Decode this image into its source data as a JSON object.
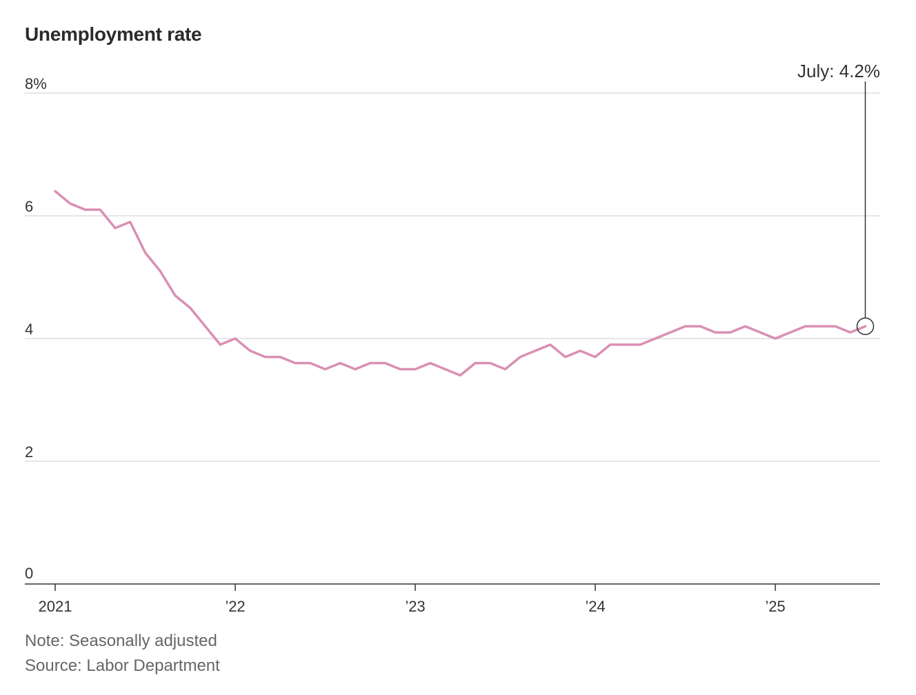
{
  "chart_data": {
    "type": "line",
    "title": "Unemployment rate",
    "series": [
      {
        "name": "Unemployment rate",
        "color": "#d98fb3",
        "x": [
          "2021-01",
          "2021-02",
          "2021-03",
          "2021-04",
          "2021-05",
          "2021-06",
          "2021-07",
          "2021-08",
          "2021-09",
          "2021-10",
          "2021-11",
          "2021-12",
          "2022-01",
          "2022-02",
          "2022-03",
          "2022-04",
          "2022-05",
          "2022-06",
          "2022-07",
          "2022-08",
          "2022-09",
          "2022-10",
          "2022-11",
          "2022-12",
          "2023-01",
          "2023-02",
          "2023-03",
          "2023-04",
          "2023-05",
          "2023-06",
          "2023-07",
          "2023-08",
          "2023-09",
          "2023-10",
          "2023-11",
          "2023-12",
          "2024-01",
          "2024-02",
          "2024-03",
          "2024-04",
          "2024-05",
          "2024-06",
          "2024-07",
          "2024-08",
          "2024-09",
          "2024-10",
          "2024-11",
          "2024-12",
          "2025-01",
          "2025-02",
          "2025-03",
          "2025-04",
          "2025-05",
          "2025-06",
          "2025-07"
        ],
        "values": [
          6.4,
          6.2,
          6.1,
          6.1,
          5.8,
          5.9,
          5.4,
          5.1,
          4.7,
          4.5,
          4.2,
          3.9,
          4.0,
          3.8,
          3.7,
          3.7,
          3.6,
          3.6,
          3.5,
          3.6,
          3.5,
          3.6,
          3.6,
          3.5,
          3.5,
          3.6,
          3.5,
          3.4,
          3.6,
          3.6,
          3.5,
          3.7,
          3.8,
          3.9,
          3.7,
          3.8,
          3.7,
          3.9,
          3.9,
          3.9,
          4.0,
          4.1,
          4.2,
          4.2,
          4.1,
          4.1,
          4.2,
          4.1,
          4.0,
          4.1,
          4.2,
          4.2,
          4.2,
          4.1,
          4.2
        ]
      }
    ],
    "y_ticks": [
      {
        "value": 8,
        "label": "8%"
      },
      {
        "value": 6,
        "label": "6"
      },
      {
        "value": 4,
        "label": "4"
      },
      {
        "value": 2,
        "label": "2"
      },
      {
        "value": 0,
        "label": "0"
      }
    ],
    "x_ticks": [
      {
        "x": "2021-01",
        "label": "2021"
      },
      {
        "x": "2022-01",
        "label": "’22"
      },
      {
        "x": "2023-01",
        "label": "’23"
      },
      {
        "x": "2024-01",
        "label": "’24"
      },
      {
        "x": "2025-01",
        "label": "’25"
      }
    ],
    "ylim": [
      0,
      8
    ],
    "grid": true,
    "annotation": {
      "x": "2025-07",
      "value": 4.2,
      "label": "July: 4.2%"
    },
    "note": "Note: Seasonally adjusted",
    "source": "Source: Labor Department",
    "colors": {
      "line": "#d98fb3",
      "grid": "#dddddd",
      "axis": "#333333",
      "annotation": "#333333"
    }
  }
}
